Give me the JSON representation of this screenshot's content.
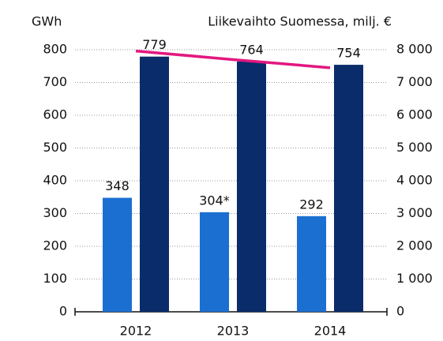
{
  "chart_data": {
    "type": "bar",
    "ylabel": "GWh",
    "y2label": "Liikevaihto Suomessa, milj. €",
    "categories": [
      "2012",
      "2013",
      "2014"
    ],
    "series": [
      {
        "color": "#1b6fd1",
        "values": [
          348,
          304,
          292
        ],
        "value_labels": [
          "348",
          "304*",
          "292"
        ]
      },
      {
        "color": "#0b2c6b",
        "values": [
          779,
          764,
          754
        ]
      },
      {
        "type": "line",
        "axis": "y2",
        "color": "#e3177f",
        "values": [
          7960,
          7700,
          7450
        ]
      }
    ],
    "ylim": [
      0,
      800
    ],
    "yticks": [
      0,
      100,
      200,
      300,
      400,
      500,
      600,
      700,
      800
    ],
    "y2lim": [
      0,
      8000
    ],
    "y2ticks": [
      0,
      {
        "value": 1000,
        "label": "1 000"
      },
      {
        "value": 2000,
        "label": "2 000"
      },
      {
        "value": 3000,
        "label": "3 000"
      },
      {
        "value": 4000,
        "label": "4 000"
      },
      {
        "value": 5000,
        "label": "5 000"
      },
      {
        "value": 6000,
        "label": "6 000"
      },
      {
        "value": 7000,
        "label": "7 000"
      },
      {
        "value": 8000,
        "label": "8 000"
      }
    ],
    "grid": true
  }
}
